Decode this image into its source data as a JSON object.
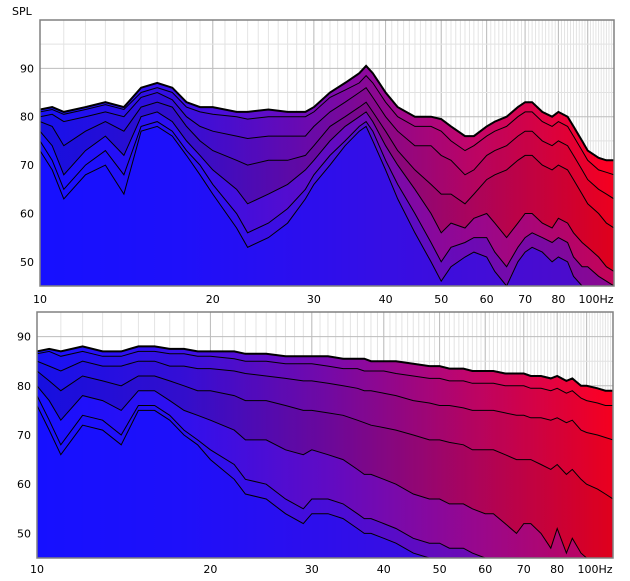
{
  "chart_data": [
    {
      "type": "area",
      "ylabel": "SPL",
      "xscale": "log",
      "xlim": [
        10,
        100
      ],
      "ylim": [
        45,
        100
      ],
      "x_ticks": [
        10,
        20,
        30,
        40,
        50,
        60,
        70,
        80,
        100
      ],
      "x_tick_labels": [
        "10",
        "20",
        "30",
        "40",
        "50",
        "60",
        "70",
        "80",
        "100Hz"
      ],
      "y_ticks": [
        50,
        60,
        70,
        80,
        90
      ],
      "y_tick_labels": [
        "50",
        "60",
        "70",
        "80",
        "90"
      ],
      "grid": true,
      "fill": "waterfall red-to-blue",
      "x": [
        10,
        10.5,
        11,
        12,
        13,
        14,
        15,
        16,
        17,
        18,
        19,
        20,
        22,
        23,
        25,
        27,
        29,
        30,
        32,
        34,
        36,
        37,
        38,
        40,
        42,
        45,
        48,
        50,
        52,
        55,
        57,
        60,
        62,
        65,
        68,
        70,
        72,
        75,
        78,
        80,
        83,
        85,
        88,
        90,
        94,
        97,
        100
      ],
      "series": [
        {
          "values": [
            81.5,
            82,
            81,
            82,
            83,
            82,
            86,
            87,
            86,
            83,
            82,
            82,
            81,
            81,
            81.5,
            81,
            81,
            82,
            85,
            87,
            89,
            90.5,
            89,
            85,
            82,
            80,
            80,
            79.5,
            78,
            76,
            76,
            78,
            79,
            80,
            82,
            83,
            83,
            81,
            80,
            81,
            80,
            78,
            75,
            73,
            71.5,
            71,
            71
          ]
        },
        {
          "values": [
            81,
            81.5,
            80.5,
            81.5,
            82.5,
            81.5,
            85,
            86,
            85,
            82,
            81,
            80.5,
            80,
            79.5,
            80,
            80,
            80,
            81,
            84,
            85.5,
            87,
            88.5,
            87,
            83,
            80,
            78,
            78,
            77,
            75,
            73,
            74,
            76,
            77,
            78,
            80,
            81,
            81,
            79,
            78,
            79,
            78,
            76,
            73,
            71,
            69,
            68.5,
            68
          ]
        },
        {
          "values": [
            80,
            80.5,
            79,
            80,
            81,
            80,
            84,
            85,
            83.5,
            80,
            78,
            77,
            76,
            75.5,
            76,
            76,
            76,
            78,
            81,
            83,
            85,
            86,
            84,
            80,
            77,
            74,
            74,
            72,
            71,
            68,
            69,
            72,
            73,
            74,
            76,
            77,
            77,
            75,
            74,
            75,
            74,
            72,
            69,
            67,
            65,
            64,
            63
          ]
        },
        {
          "values": [
            79,
            78,
            74,
            77,
            79,
            77,
            82,
            83,
            82,
            78,
            75,
            73,
            71,
            70,
            71,
            71,
            72,
            74,
            78,
            80,
            82,
            83,
            81,
            77,
            73,
            69,
            66,
            64,
            64,
            62,
            64,
            67,
            68,
            69,
            71,
            72,
            72,
            70,
            69,
            70,
            69,
            67,
            64,
            62,
            60,
            58,
            57
          ]
        },
        {
          "values": [
            77,
            74,
            68,
            73,
            76,
            72,
            80,
            81,
            79,
            75,
            72,
            69,
            65,
            62,
            64,
            66,
            69,
            71,
            75,
            78,
            80,
            81,
            79,
            74,
            70,
            65,
            60,
            56,
            58,
            57,
            59,
            60,
            58,
            55,
            58,
            60,
            60,
            58,
            57,
            59,
            58,
            56,
            54,
            53,
            51,
            49,
            48
          ]
        },
        {
          "values": [
            75,
            71,
            65,
            70,
            73,
            68,
            78,
            79,
            77,
            73,
            70,
            66,
            60,
            56,
            58,
            61,
            65,
            68,
            72,
            75,
            78,
            79,
            77,
            71,
            66,
            60,
            54,
            50,
            53,
            54,
            55,
            55,
            52,
            49,
            53,
            55,
            56,
            55,
            54,
            55,
            54,
            51,
            49,
            49,
            47,
            46,
            45
          ]
        },
        {
          "values": [
            73,
            69,
            63,
            68,
            70,
            64,
            77,
            78,
            76,
            72,
            68,
            64,
            57,
            53,
            55,
            58,
            63,
            66,
            70,
            74,
            77,
            78,
            75,
            69,
            63,
            56,
            50,
            46,
            49,
            51,
            52,
            51,
            48,
            45,
            50,
            52,
            53,
            52,
            50,
            51,
            50,
            47,
            45,
            45,
            44,
            43,
            42
          ]
        }
      ]
    },
    {
      "type": "area",
      "xscale": "log",
      "xlim": [
        10,
        100
      ],
      "ylim": [
        45,
        95
      ],
      "x_ticks": [
        10,
        20,
        30,
        40,
        50,
        60,
        70,
        80,
        100
      ],
      "x_tick_labels": [
        "10",
        "20",
        "30",
        "40",
        "50",
        "60",
        "70",
        "80",
        "100Hz"
      ],
      "y_ticks": [
        50,
        60,
        70,
        80,
        90
      ],
      "y_tick_labels": [
        "50",
        "60",
        "70",
        "80",
        "90"
      ],
      "grid": true,
      "fill": "waterfall red-to-blue",
      "x": [
        10,
        10.5,
        11,
        12,
        13,
        14,
        15,
        16,
        17,
        18,
        19,
        20,
        22,
        23,
        25,
        27,
        29,
        30,
        32,
        34,
        36,
        37,
        38,
        40,
        42,
        45,
        48,
        50,
        52,
        55,
        57,
        60,
        62,
        65,
        68,
        70,
        72,
        75,
        78,
        80,
        83,
        85,
        88,
        90,
        94,
        97,
        100
      ],
      "series": [
        {
          "values": [
            87,
            87.5,
            87,
            88,
            87,
            87,
            88,
            88,
            87.5,
            87.5,
            87,
            87,
            87,
            86.5,
            86.5,
            86,
            86,
            86,
            86,
            85.5,
            85.5,
            85.5,
            85,
            85,
            85,
            84.5,
            84,
            84,
            83.5,
            83.5,
            83,
            83,
            83,
            82.5,
            82.5,
            82.5,
            82,
            82,
            81.5,
            82,
            81,
            81.5,
            80,
            80,
            79.5,
            79,
            79
          ]
        },
        {
          "values": [
            86.5,
            87,
            86,
            87,
            86,
            86,
            87,
            87,
            86.5,
            86.5,
            86,
            86,
            85.5,
            85,
            85,
            84.5,
            84.5,
            84.5,
            84,
            83.5,
            83.5,
            83,
            83,
            83,
            82.5,
            82,
            81.5,
            81.5,
            81,
            81,
            80.5,
            80.5,
            80.5,
            80,
            80,
            80,
            79.5,
            79.5,
            79,
            79.5,
            78.5,
            79,
            77.5,
            77,
            76.5,
            76,
            76
          ]
        },
        {
          "values": [
            85,
            84,
            83,
            85,
            84,
            84,
            85,
            85,
            84,
            84,
            83.5,
            83.5,
            83,
            82.5,
            82,
            81.5,
            81,
            81,
            80.5,
            80,
            79.5,
            79,
            79,
            78.5,
            78,
            77,
            76.5,
            76,
            76,
            75.5,
            75,
            75,
            75,
            74.5,
            74,
            74,
            73.5,
            73.5,
            73,
            73.5,
            72.5,
            73,
            71,
            70.5,
            70,
            69.5,
            69
          ]
        },
        {
          "values": [
            83,
            81,
            79,
            82,
            81,
            80,
            82,
            82,
            81,
            80,
            79,
            79,
            78,
            77,
            77,
            76,
            75,
            75,
            74.5,
            74,
            73,
            72.5,
            72,
            71.5,
            71,
            70,
            69,
            69,
            68.5,
            68,
            67,
            67,
            67,
            66,
            65,
            65,
            65,
            64,
            63,
            64,
            62,
            63,
            61,
            60,
            59,
            58,
            57
          ]
        },
        {
          "values": [
            80,
            77,
            73,
            78,
            77,
            75,
            79,
            79,
            77,
            75,
            74,
            73,
            71,
            69,
            69,
            67,
            66,
            67,
            66,
            65,
            63,
            62,
            62,
            61,
            60,
            58,
            57,
            57,
            56,
            56,
            55,
            54,
            54,
            52,
            50,
            52,
            52,
            50,
            47,
            51,
            46,
            49,
            46,
            45,
            44,
            43,
            42
          ]
        },
        {
          "values": [
            78,
            73,
            68,
            74,
            73,
            70,
            76,
            76,
            74,
            71,
            69,
            67,
            64,
            61,
            60,
            57,
            55,
            57,
            57,
            56,
            54,
            53,
            53,
            52,
            51,
            49,
            48,
            48,
            47,
            47,
            46,
            45,
            45,
            44,
            43,
            44,
            44,
            43,
            42,
            44,
            42,
            43,
            42,
            41,
            41,
            41,
            40
          ]
        },
        {
          "values": [
            76,
            71,
            66,
            72,
            71,
            68,
            75,
            75,
            73,
            70,
            68,
            65,
            61,
            58,
            57,
            54,
            52,
            54,
            54,
            53,
            51,
            50,
            50,
            49,
            48,
            46,
            45,
            45,
            44,
            44,
            43,
            42,
            42,
            41,
            40,
            41,
            41,
            40,
            40,
            41,
            40,
            40,
            40,
            40,
            40,
            40,
            40
          ]
        }
      ]
    }
  ]
}
